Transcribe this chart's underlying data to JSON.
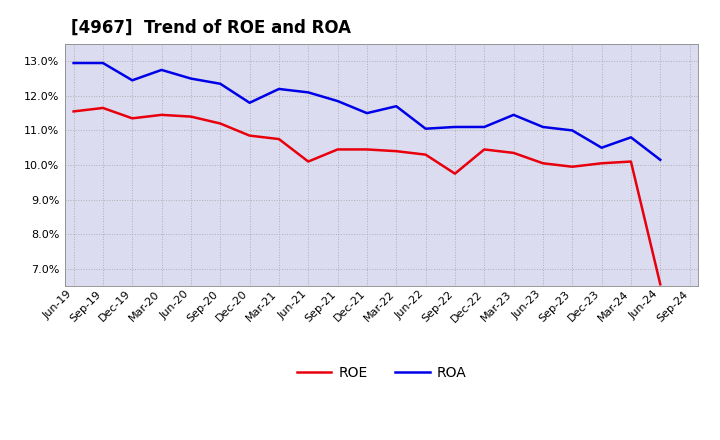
{
  "title": "[4967]  Trend of ROE and ROA",
  "labels": [
    "Jun-19",
    "Sep-19",
    "Dec-19",
    "Mar-20",
    "Jun-20",
    "Sep-20",
    "Dec-20",
    "Mar-21",
    "Jun-21",
    "Sep-21",
    "Dec-21",
    "Mar-22",
    "Jun-22",
    "Sep-22",
    "Dec-22",
    "Mar-23",
    "Jun-23",
    "Sep-23",
    "Dec-23",
    "Mar-24",
    "Jun-24",
    "Sep-24"
  ],
  "ROE": [
    11.55,
    11.65,
    11.35,
    11.45,
    11.4,
    11.2,
    10.85,
    10.75,
    10.1,
    10.45,
    10.45,
    10.4,
    10.3,
    9.75,
    10.45,
    10.35,
    10.05,
    9.95,
    10.05,
    10.1,
    6.55,
    null
  ],
  "ROA": [
    12.95,
    12.95,
    12.45,
    12.75,
    12.5,
    12.35,
    11.8,
    12.2,
    12.1,
    11.85,
    11.5,
    11.7,
    11.05,
    11.1,
    11.1,
    11.45,
    11.1,
    11.0,
    10.5,
    10.8,
    10.15,
    null
  ],
  "roe_color": "#e8000d",
  "roa_color": "#0000e8",
  "background_color": "#ffffff",
  "plot_bg_color": "#dcdcf0",
  "grid_color": "#aaaaaa",
  "ylim": [
    6.5,
    13.5
  ],
  "yticks": [
    7.0,
    8.0,
    9.0,
    10.0,
    11.0,
    12.0,
    13.0
  ],
  "line_width": 1.8,
  "title_fontsize": 12,
  "tick_fontsize": 8,
  "legend_fontsize": 10
}
